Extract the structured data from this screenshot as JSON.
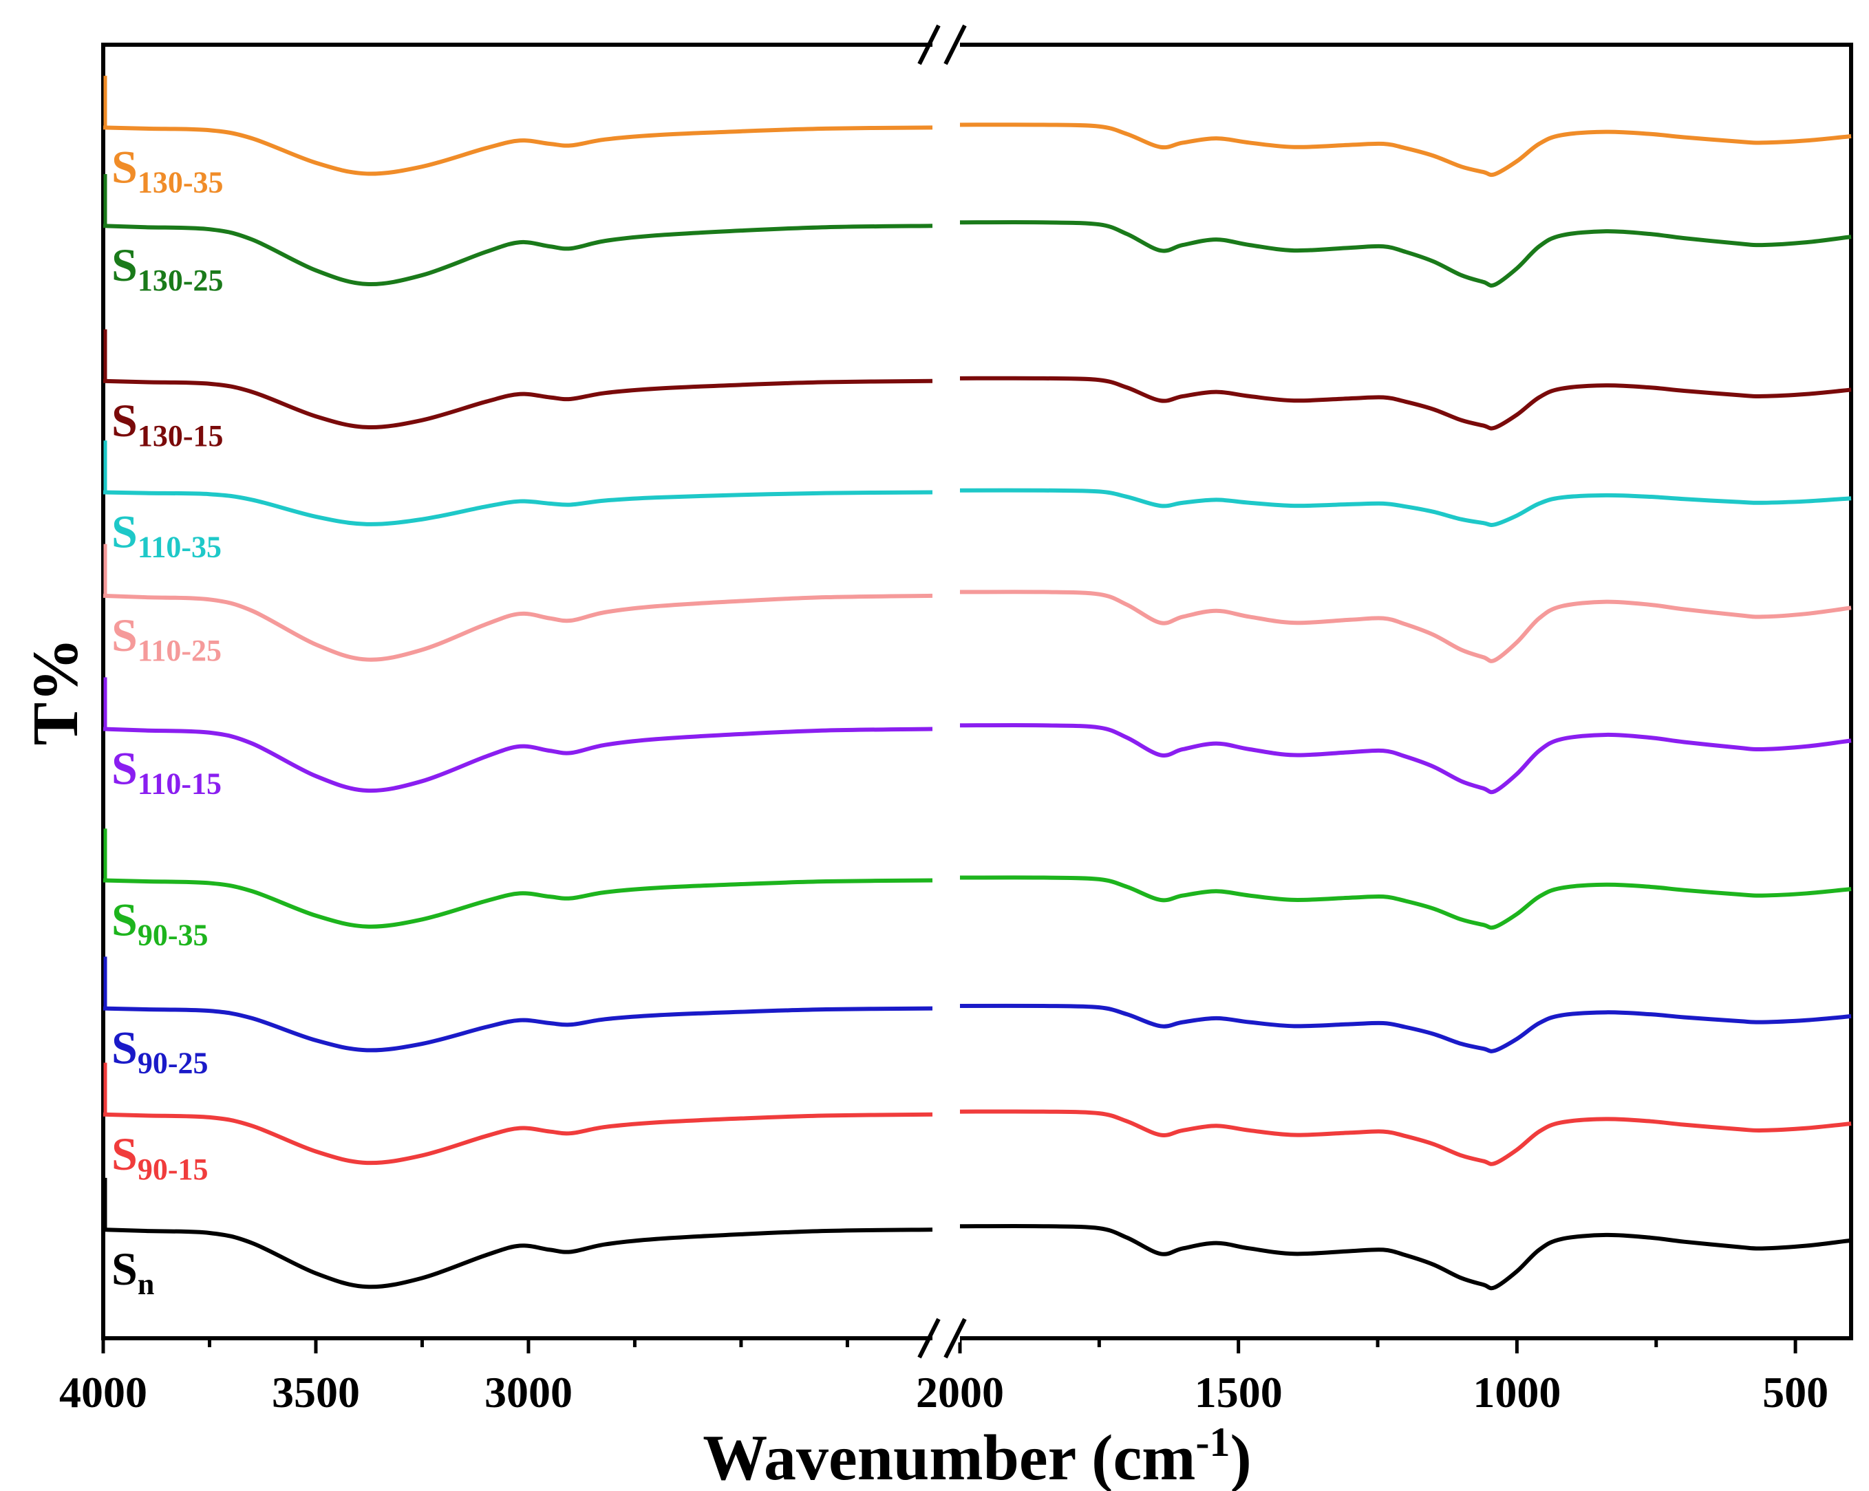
{
  "chart_data": {
    "type": "line",
    "title": "",
    "xlabel": "Wavenumber (cm",
    "xlabel_sup": "-1",
    "xlabel_close": ")",
    "ylabel": "T%",
    "x_reversed": true,
    "broken_axis": true,
    "x_segments": [
      {
        "xlim": [
          4000,
          2050
        ],
        "ticks": [
          4000,
          3500,
          3000
        ]
      },
      {
        "xlim": [
          2000,
          400
        ],
        "ticks": [
          2000,
          1500,
          1000,
          500
        ]
      }
    ],
    "tick_labels": [
      "4000",
      "3500",
      "3000",
      "2000",
      "1500",
      "1000",
      "500"
    ],
    "y_units": "relative transmittance, arbitrary (stacked traces, higher = more transmittance)",
    "ylim": [
      0,
      100
    ],
    "grid": false,
    "legend": "inline labels at left of each trace",
    "x": [
      4000,
      3900,
      3750,
      3650,
      3500,
      3380,
      3250,
      3100,
      3020,
      2950,
      2900,
      2820,
      2700,
      2500,
      2300,
      2050,
      2000,
      1850,
      1750,
      1700,
      1640,
      1600,
      1540,
      1480,
      1400,
      1300,
      1240,
      1200,
      1150,
      1100,
      1060,
      1040,
      1000,
      960,
      920,
      840,
      760,
      700,
      600,
      560,
      480,
      400
    ],
    "series": [
      {
        "name": "S",
        "sub": "n",
        "color": "#000000",
        "baseline": 8.4,
        "amp": 5.2
      },
      {
        "name": "S",
        "sub": "90-15",
        "color": "#f03c3c",
        "baseline": 17.3,
        "amp": 4.4
      },
      {
        "name": "S",
        "sub": "90-25",
        "color": "#1a1ac8",
        "baseline": 25.5,
        "amp": 3.8
      },
      {
        "name": "S",
        "sub": "90-35",
        "color": "#1db41d",
        "baseline": 35.4,
        "amp": 4.2
      },
      {
        "name": "S",
        "sub": "110-15",
        "color": "#8a1ef0",
        "baseline": 47.1,
        "amp": 5.6
      },
      {
        "name": "S",
        "sub": "110-25",
        "color": "#f59a9a",
        "baseline": 57.4,
        "amp": 5.8
      },
      {
        "name": "S",
        "sub": "110-35",
        "color": "#1ec8c8",
        "baseline": 65.4,
        "amp": 2.9
      },
      {
        "name": "S",
        "sub": "130-15",
        "color": "#7a0a0a",
        "baseline": 74.0,
        "amp": 4.2
      },
      {
        "name": "S",
        "sub": "130-25",
        "color": "#1a7a1a",
        "baseline": 86.0,
        "amp": 5.3
      },
      {
        "name": "S",
        "sub": "130-35",
        "color": "#f08c28",
        "baseline": 93.6,
        "amp": 4.2
      }
    ],
    "shape_profile": [
      0,
      0.02,
      0.05,
      0.2,
      0.65,
      0.85,
      0.72,
      0.38,
      0.24,
      0.3,
      0.33,
      0.22,
      0.14,
      0.07,
      0.02,
      0.0,
      -0.05,
      -0.05,
      -0.02,
      0.12,
      0.36,
      0.28,
      0.2,
      0.28,
      0.36,
      0.32,
      0.3,
      0.38,
      0.52,
      0.72,
      0.82,
      0.86,
      0.62,
      0.3,
      0.14,
      0.08,
      0.12,
      0.18,
      0.26,
      0.28,
      0.24,
      0.16
    ]
  }
}
